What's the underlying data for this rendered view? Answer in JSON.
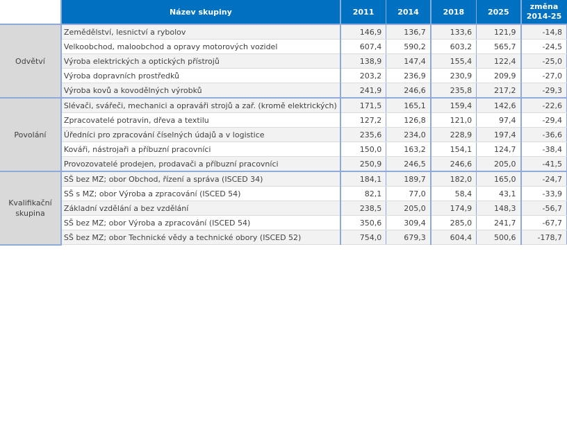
{
  "header": {
    "name": "Název skupiny",
    "y2011": "2011",
    "y2014": "2014",
    "y2018": "2018",
    "y2025": "2025",
    "change_line1": "změna",
    "change_line2": "2014-25"
  },
  "groups": [
    {
      "label": "Odvětví",
      "rows": [
        {
          "name": "Zemědělství, lesnictví a rybolov",
          "v2011": "146,9",
          "v2014": "136,7",
          "v2018": "133,6",
          "v2025": "121,9",
          "change": "-14,8"
        },
        {
          "name": "Velkoobchod, maloobchod a opravy motorových vozidel",
          "v2011": "607,4",
          "v2014": "590,2",
          "v2018": "603,2",
          "v2025": "565,7",
          "change": "-24,5"
        },
        {
          "name": "Výroba elektrických a optických přístrojů",
          "v2011": "138,9",
          "v2014": "147,4",
          "v2018": "155,4",
          "v2025": "122,4",
          "change": "-25,0"
        },
        {
          "name": "Výroba dopravních prostředků",
          "v2011": "203,2",
          "v2014": "236,9",
          "v2018": "230,9",
          "v2025": "209,9",
          "change": "-27,0"
        },
        {
          "name": "Výroba kovů a kovodělných výrobků",
          "v2011": "241,9",
          "v2014": "246,6",
          "v2018": "235,8",
          "v2025": "217,2",
          "change": "-29,3"
        }
      ]
    },
    {
      "label": "Povolání",
      "rows": [
        {
          "name": "Slévači, svářeči, mechanici a opraváři strojů a zař. (kromě elektrických)",
          "v2011": "171,5",
          "v2014": "165,1",
          "v2018": "159,4",
          "v2025": "142,6",
          "change": "-22,6"
        },
        {
          "name": "Zpracovatelé potravin, dřeva a textilu",
          "v2011": "127,2",
          "v2014": "126,8",
          "v2018": "121,0",
          "v2025": "97,4",
          "change": "-29,4"
        },
        {
          "name": "Úředníci pro zpracování číselných údajů a v logistice",
          "v2011": "235,6",
          "v2014": "234,0",
          "v2018": "228,9",
          "v2025": "197,4",
          "change": "-36,6"
        },
        {
          "name": "Kováři, nástrojaři a příbuzní pracovníci",
          "v2011": "150,0",
          "v2014": "163,2",
          "v2018": "154,1",
          "v2025": "124,7",
          "change": "-38,4"
        },
        {
          "name": "Provozovatelé prodejen, prodavači a příbuzní pracovníci",
          "v2011": "250,9",
          "v2014": "246,5",
          "v2018": "246,6",
          "v2025": "205,0",
          "change": "-41,5"
        }
      ]
    },
    {
      "label": "Kvalifikační skupina",
      "rows": [
        {
          "name": "SŠ bez MZ; obor Obchod, řízení a správa (ISCED 34)",
          "v2011": "184,1",
          "v2014": "189,7",
          "v2018": "182,0",
          "v2025": "165,0",
          "change": "-24,7"
        },
        {
          "name": "SŠ s MZ; obor Výroba a zpracování (ISCED 54)",
          "v2011": "82,1",
          "v2014": "77,0",
          "v2018": "58,4",
          "v2025": "43,1",
          "change": "-33,9"
        },
        {
          "name": "Základní vzdělání a bez vzdělání",
          "v2011": "238,5",
          "v2014": "205,0",
          "v2018": "174,9",
          "v2025": "148,3",
          "change": "-56,7"
        },
        {
          "name": "SŠ bez MZ; obor Výroba a zpracování (ISCED 54)",
          "v2011": "350,6",
          "v2014": "309,4",
          "v2018": "285,0",
          "v2025": "241,7",
          "change": "-67,7"
        },
        {
          "name": "SŠ bez MZ; obor Technické vědy a technické obory (ISCED 52)",
          "v2011": "754,0",
          "v2014": "679,3",
          "v2018": "604,4",
          "v2025": "500,6",
          "change": "-178,7"
        }
      ]
    }
  ]
}
